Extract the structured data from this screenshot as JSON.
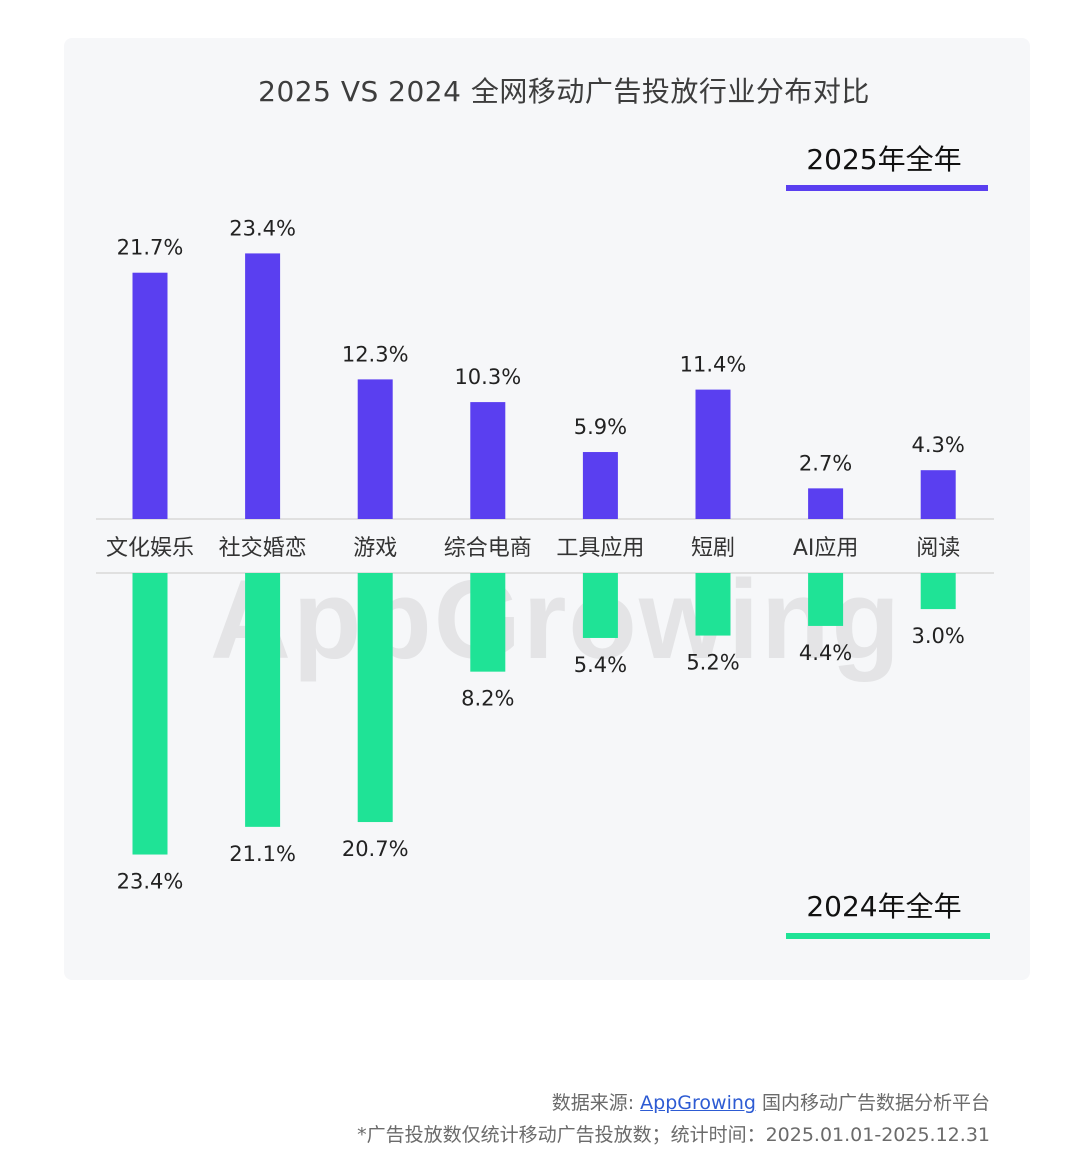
{
  "title": "2025 VS 2024 全网移动广告投放行业分布对比",
  "legend": {
    "top_label": "2025年全年",
    "bottom_label": "2024年全年"
  },
  "colors": {
    "series_2025": "#5a3ff0",
    "series_2024": "#1fe396",
    "grid": "#d8d8d8",
    "text": "#222222"
  },
  "watermark": "AppGrowing",
  "footer": {
    "source_prefix": "数据来源: ",
    "source_link": "AppGrowing",
    "source_suffix": " 国内移动广告数据分析平台",
    "note": "*广告投放数仅统计移动广告投放数；统计时间：2025.01.01-2025.12.31"
  },
  "chart_data": {
    "type": "bar",
    "title": "2025 VS 2024 全网移动广告投放行业分布对比",
    "categories": [
      "文化娱乐",
      "社交婚恋",
      "游戏",
      "综合电商",
      "工具应用",
      "短剧",
      "AI应用",
      "阅读"
    ],
    "series": [
      {
        "name": "2025年全年",
        "values": [
          21.7,
          23.4,
          12.3,
          10.3,
          5.9,
          11.4,
          2.7,
          4.3
        ],
        "labels": [
          "21.7%",
          "23.4%",
          "12.3%",
          "10.3%",
          "5.9%",
          "11.4%",
          "2.7%",
          "4.3%"
        ]
      },
      {
        "name": "2024年全年",
        "values": [
          23.4,
          21.1,
          20.7,
          8.2,
          5.4,
          5.2,
          4.4,
          3.0
        ],
        "labels": [
          "23.4%",
          "21.1%",
          "20.7%",
          "8.2%",
          "5.4%",
          "5.2%",
          "4.4%",
          "3.0%"
        ]
      }
    ],
    "unit": "%",
    "xlabel": "",
    "ylabel": ""
  }
}
